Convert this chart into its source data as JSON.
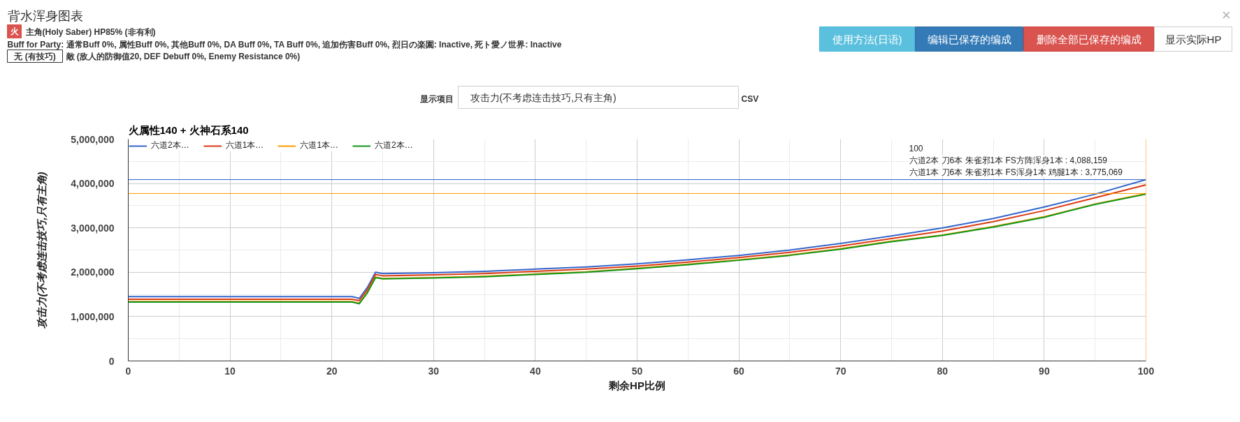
{
  "chart_data": {
    "type": "line",
    "title": "火属性140 + 火神石系140",
    "xlabel": "剩余HP比例",
    "ylabel": "攻击力(不考虑连击技巧,只有主角)",
    "x": [
      0,
      22,
      22.7,
      23.5,
      24.3,
      25,
      30,
      35,
      40,
      45,
      50,
      55,
      60,
      65,
      70,
      75,
      80,
      85,
      90,
      95,
      100
    ],
    "series": [
      {
        "name": "六道2本…",
        "color": "#3366cc",
        "values": [
          1450000,
          1450000,
          1410000,
          1660000,
          2000000,
          1970000,
          1990000,
          2020000,
          2070000,
          2120000,
          2190000,
          2280000,
          2380000,
          2500000,
          2650000,
          2820000,
          3000000,
          3210000,
          3470000,
          3760000,
          4088159
        ]
      },
      {
        "name": "六道1本…",
        "color": "#dc3912",
        "values": [
          1390000,
          1390000,
          1360000,
          1610000,
          1950000,
          1920000,
          1940000,
          1970000,
          2020000,
          2070000,
          2140000,
          2230000,
          2330000,
          2450000,
          2590000,
          2760000,
          2930000,
          3140000,
          3390000,
          3680000,
          3970000
        ]
      },
      {
        "name": "六道1本…",
        "color": "#ff9900",
        "values": [
          1340000,
          1340000,
          1300000,
          1550000,
          1890000,
          1860000,
          1880000,
          1910000,
          1960000,
          2010000,
          2090000,
          2180000,
          2280000,
          2390000,
          2530000,
          2700000,
          2840000,
          3030000,
          3250000,
          3540000,
          3775069
        ]
      },
      {
        "name": "六道2本…",
        "color": "#109618",
        "values": [
          1330000,
          1330000,
          1290000,
          1540000,
          1880000,
          1850000,
          1870000,
          1900000,
          1950000,
          2000000,
          2080000,
          2170000,
          2270000,
          2380000,
          2520000,
          2690000,
          2830000,
          3020000,
          3240000,
          3530000,
          3760000
        ]
      }
    ],
    "xlim": [
      0,
      100
    ],
    "ylim": [
      0,
      5000000
    ],
    "xticks": [
      0,
      {
        "value": 5,
        "label": null
      },
      10,
      {
        "value": 15,
        "label": null
      },
      20,
      {
        "value": 25,
        "label": null
      },
      30,
      {
        "value": 35,
        "label": null
      },
      40,
      {
        "value": 45,
        "label": null
      },
      50,
      {
        "value": 55,
        "label": null
      },
      60,
      {
        "value": 65,
        "label": null
      },
      70,
      {
        "value": 75,
        "label": null
      },
      80,
      {
        "value": 85,
        "label": null
      },
      90,
      {
        "value": 95,
        "label": null
      },
      100
    ],
    "yticks": [
      0,
      {
        "value": 500000,
        "label": null
      },
      {
        "value": 1000000,
        "label": "1,000,000"
      },
      {
        "value": 1500000,
        "label": null
      },
      {
        "value": 2000000,
        "label": "2,000,000"
      },
      {
        "value": 2500000,
        "label": null
      },
      {
        "value": 3000000,
        "label": "3,000,000"
      },
      {
        "value": 3500000,
        "label": null
      },
      {
        "value": 4000000,
        "label": "4,000,000"
      },
      {
        "value": 4500000,
        "label": null
      },
      {
        "value": 5000000,
        "label": "5,000,000"
      }
    ],
    "grid": true,
    "legend": "top left",
    "ref_lines": [
      {
        "axis": "y",
        "value": 4088159,
        "color": "#3366cc"
      },
      {
        "axis": "y",
        "value": 3775069,
        "color": "#ff9900"
      },
      {
        "axis": "x",
        "value": 100,
        "color": "#ff9900"
      }
    ],
    "annotations": [
      "背水浑身图表",
      "火",
      "主角(Holy Saber) HP85% (非有利)",
      "Buff for Party: 通常Buff 0%, 属性Buff 0%, 其他Buff 0%, DA Buff 0%, TA Buff 0%, 追加伤害Buff 0%, 烈日の楽園: Inactive, 死ト愛ノ世界: Inactive",
      "无 (有技巧)",
      "敵 (敌人的防御值20, DEF Debuff 0%, Enemy Resistance 0%)",
      "使用方法(日语)",
      "编辑已保存的编成",
      "删除全部已保存的编成",
      "显示实际HP",
      "×",
      "显示项目",
      "攻击力(不考虑连击技巧,只有主角)",
      "CSV",
      "100",
      "六道2本 刀6本 朱雀邪1本 FS方阵浑身1本 : 4,088,159",
      "六道1本 刀6本 朱雀邪1本 FS浑身1本 鸡腿1本 : 3,775,069"
    ]
  }
}
